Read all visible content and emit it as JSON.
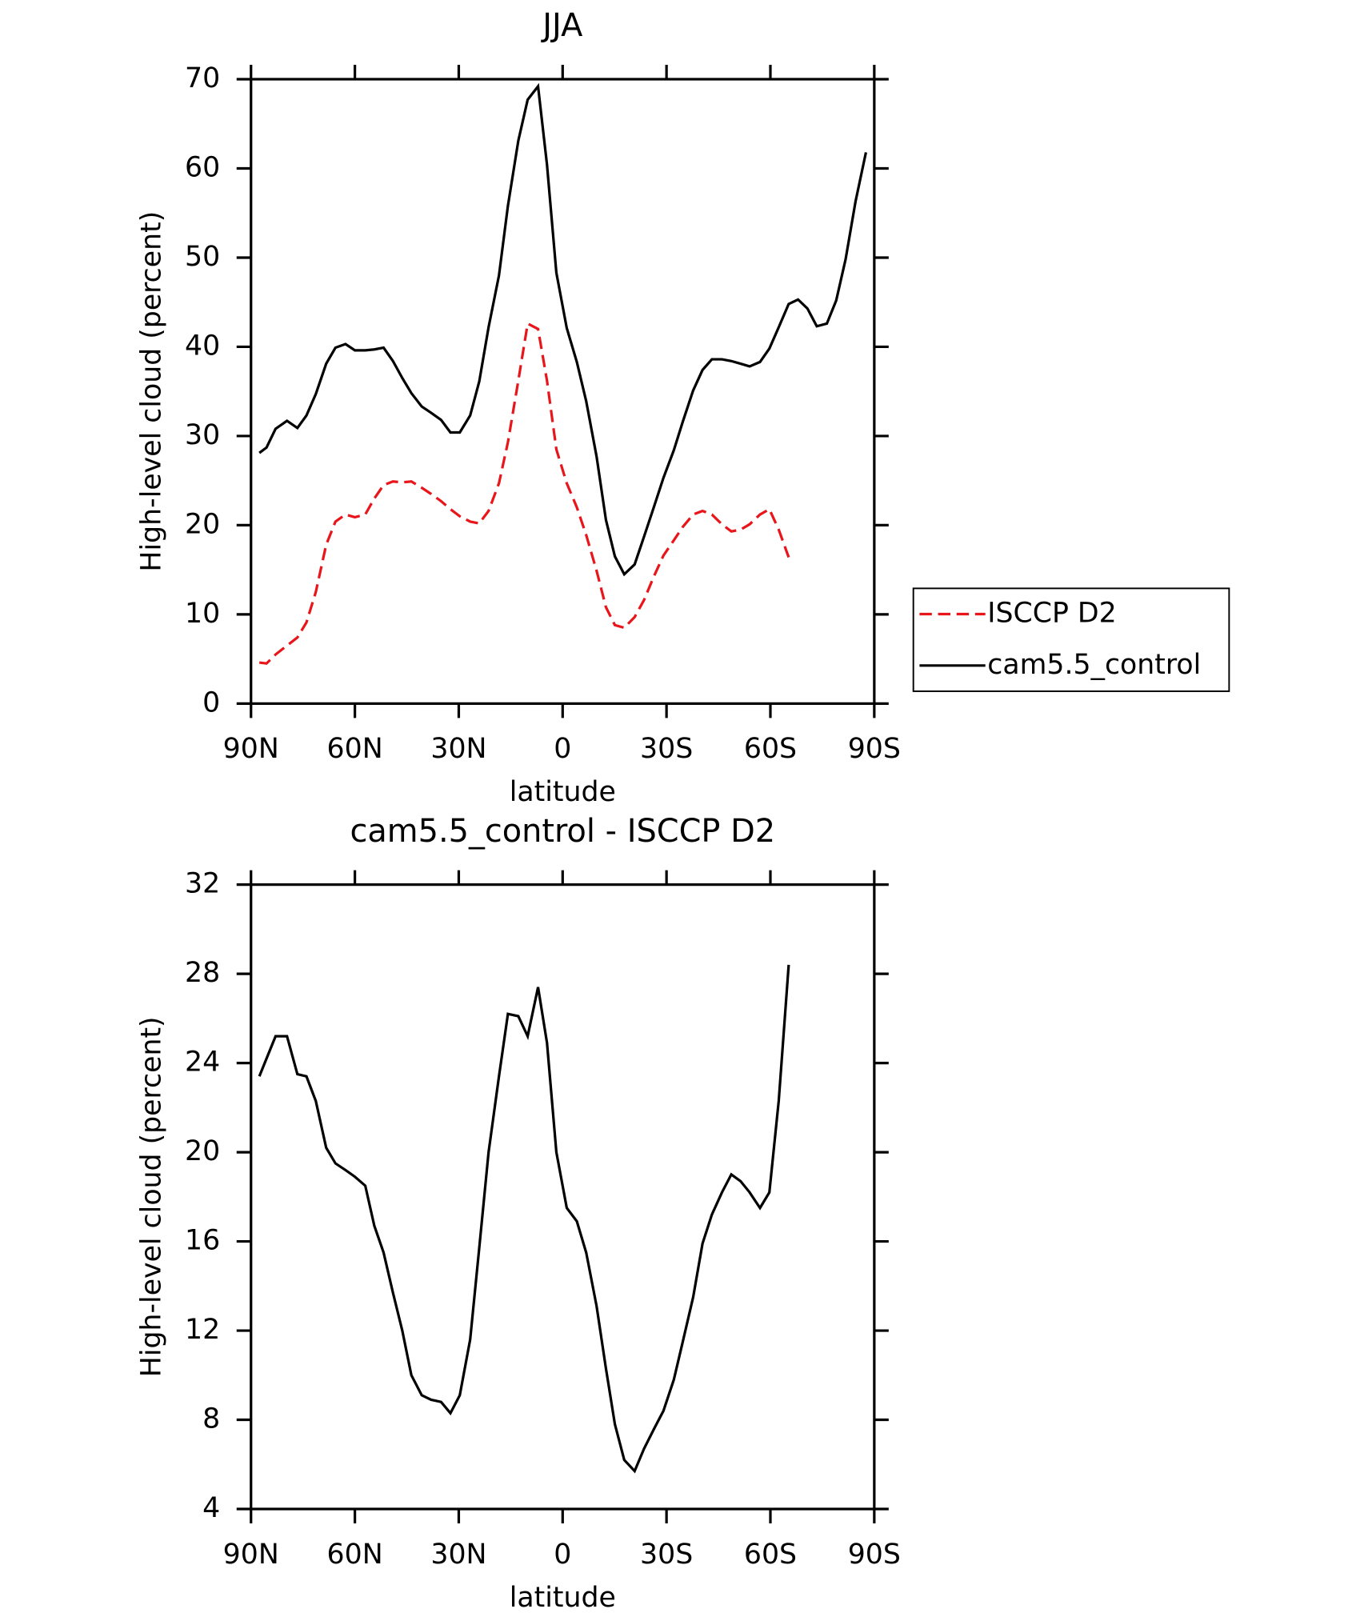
{
  "chart_data": [
    {
      "type": "line",
      "title": "JJA",
      "xlabel": "latitude",
      "ylabel": "High-level cloud (percent)",
      "x": [
        87.6,
        85.5,
        82.9,
        79.6,
        76.6,
        74.0,
        71.3,
        68.3,
        65.6,
        62.7,
        60.0,
        57.0,
        54.4,
        51.7,
        49.0,
        46.3,
        43.7,
        40.7,
        38.0,
        35.1,
        32.4,
        29.7,
        26.7,
        24.1,
        21.4,
        18.4,
        15.8,
        12.8,
        10.1,
        7.1,
        4.5,
        1.8,
        -1.2,
        -4.1,
        -6.8,
        -9.8,
        -12.5,
        -15.1,
        -17.8,
        -20.8,
        -23.5,
        -26.4,
        -29.1,
        -32.1,
        -34.7,
        -37.7,
        -40.4,
        -43.1,
        -46.0,
        -48.7,
        -51.4,
        -54.0,
        -57.0,
        -59.7,
        -62.4,
        -65.3,
        -68.0,
        -70.7,
        -73.4,
        -76.3,
        -79.0,
        -81.7,
        -84.6,
        -87.6
      ],
      "series": [
        {
          "name": "ISCCP D2",
          "color": "#e8161b",
          "dashed": true,
          "values": [
            4.6,
            4.5,
            5.5,
            6.5,
            7.4,
            9.1,
            12.5,
            17.8,
            20.4,
            21.2,
            20.9,
            21.2,
            23.0,
            24.5,
            24.9,
            24.8,
            24.9,
            24.2,
            23.5,
            22.7,
            21.8,
            21.0,
            20.4,
            20.2,
            21.6,
            24.7,
            29.3,
            36.2,
            42.6,
            42.0,
            36.2,
            28.5,
            24.7,
            22.0,
            18.9,
            14.9,
            10.8,
            8.8,
            8.5,
            9.7,
            11.6,
            14.3,
            16.6,
            18.3,
            19.8,
            21.2,
            21.6,
            21.2,
            20.1,
            19.3,
            19.5,
            20.1,
            21.2,
            21.8,
            19.5,
            16.4,
            null,
            null,
            null,
            null,
            null,
            null,
            null,
            null
          ]
        },
        {
          "name": "cam5.5_control",
          "color": "#000000",
          "dashed": false,
          "values": [
            28.1,
            28.7,
            30.8,
            31.7,
            30.9,
            32.3,
            34.7,
            38.1,
            39.9,
            40.3,
            39.6,
            39.6,
            39.7,
            39.9,
            38.4,
            36.5,
            34.8,
            33.3,
            32.6,
            31.8,
            30.4,
            30.4,
            32.3,
            36.1,
            42.2,
            48.0,
            55.8,
            63.1,
            67.7,
            69.2,
            60.4,
            48.3,
            42.1,
            38.3,
            33.9,
            27.7,
            20.6,
            16.5,
            14.5,
            15.6,
            18.7,
            22.1,
            25.3,
            28.4,
            31.6,
            35.1,
            37.4,
            38.6,
            38.6,
            38.4,
            38.1,
            37.8,
            38.3,
            39.8,
            42.2,
            44.8,
            45.3,
            44.3,
            42.3,
            42.6,
            45.2,
            49.8,
            56.3,
            61.8
          ]
        }
      ],
      "xlim": [
        90,
        -90
      ],
      "xticks": [
        {
          "value": 90,
          "label": "90N"
        },
        {
          "value": 60,
          "label": "60N"
        },
        {
          "value": 30,
          "label": "30N"
        },
        0,
        {
          "value": -30,
          "label": "30S"
        },
        {
          "value": -60,
          "label": "60S"
        },
        {
          "value": -90,
          "label": "90S"
        }
      ],
      "ylim": [
        0,
        70
      ],
      "yticks": [
        0,
        10,
        20,
        30,
        40,
        50,
        60,
        70
      ],
      "legend": "outside-right"
    },
    {
      "type": "line",
      "title": "cam5.5_control - ISCCP D2",
      "xlabel": "latitude",
      "ylabel": "High-level cloud (percent)",
      "x": [
        87.6,
        85.5,
        82.9,
        79.6,
        76.6,
        74.0,
        71.3,
        68.3,
        65.6,
        62.7,
        60.0,
        57.0,
        54.4,
        51.7,
        49.0,
        46.3,
        43.7,
        40.7,
        38.0,
        35.1,
        32.4,
        29.7,
        26.7,
        24.1,
        21.4,
        18.4,
        15.8,
        12.8,
        10.1,
        7.1,
        4.5,
        1.8,
        -1.2,
        -4.1,
        -6.8,
        -9.8,
        -12.5,
        -15.1,
        -17.8,
        -20.8,
        -23.5,
        -26.4,
        -29.1,
        -32.1,
        -34.7,
        -37.7,
        -40.4,
        -43.1,
        -46.0,
        -48.7,
        -51.4,
        -54.0,
        -57.0,
        -59.7,
        -62.4,
        -65.3,
        -68.0,
        -70.7,
        -73.4,
        -76.3,
        -79.0,
        -81.7,
        -84.6,
        -87.6
      ],
      "series": [
        {
          "color": "#000000",
          "dashed": false,
          "values": [
            23.4,
            24.2,
            25.2,
            25.2,
            23.5,
            23.4,
            22.3,
            20.2,
            19.5,
            19.2,
            18.9,
            18.5,
            16.7,
            15.5,
            13.7,
            12.0,
            10.0,
            9.1,
            8.9,
            8.8,
            8.3,
            9.1,
            11.6,
            15.7,
            20.0,
            23.4,
            26.2,
            26.1,
            25.2,
            27.4,
            24.9,
            20.0,
            17.5,
            16.9,
            15.5,
            13.1,
            10.3,
            7.8,
            6.2,
            5.7,
            6.7,
            7.6,
            8.4,
            9.8,
            11.5,
            13.5,
            15.9,
            17.2,
            18.2,
            19.0,
            18.7,
            18.2,
            17.5,
            18.2,
            22.3,
            28.4,
            null,
            null,
            null,
            null,
            null,
            null,
            null,
            null
          ]
        }
      ],
      "xlim": [
        90,
        -90
      ],
      "xticks": [
        {
          "value": 90,
          "label": "90N"
        },
        {
          "value": 60,
          "label": "60N"
        },
        {
          "value": 30,
          "label": "30N"
        },
        0,
        {
          "value": -30,
          "label": "30S"
        },
        {
          "value": -60,
          "label": "60S"
        },
        {
          "value": -90,
          "label": "90S"
        }
      ],
      "ylim": [
        4,
        32
      ],
      "yticks": [
        4,
        8,
        12,
        16,
        20,
        24,
        28,
        32
      ]
    }
  ]
}
